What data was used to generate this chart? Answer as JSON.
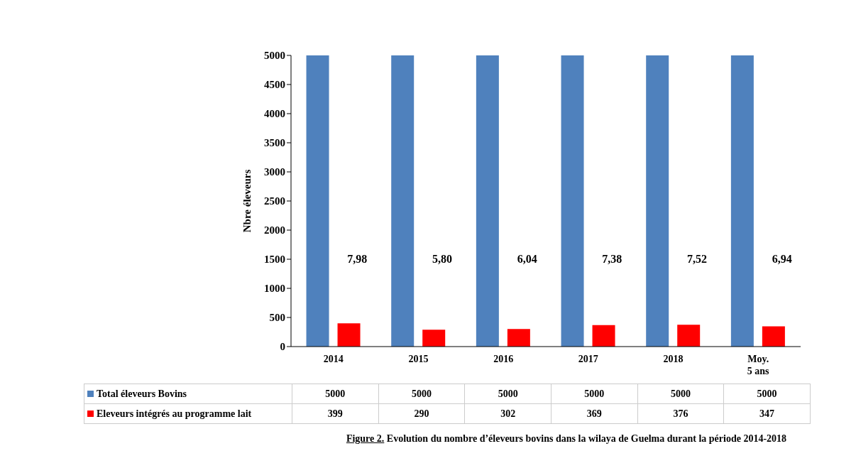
{
  "chart_data": {
    "type": "bar",
    "title": "Figure 2. Evolution du nombre d’éleveurs bovins dans la wilaya de Guelma durant la période 2014-2018",
    "ylabel": "Nbre éleveurs",
    "categories": [
      "2014",
      "2015",
      "2016",
      "2017",
      "2018",
      "Moy. 5 ans"
    ],
    "series": [
      {
        "name": "Total éleveurs Bovins",
        "color": "#4f81bd",
        "values": [
          5000,
          5000,
          5000,
          5000,
          5000,
          5000
        ]
      },
      {
        "name": "Eleveurs intégrés au programme lait",
        "color": "#ff0000",
        "values": [
          399,
          290,
          302,
          369,
          376,
          347
        ]
      }
    ],
    "ylim": [
      0,
      5000
    ],
    "yticks": [
      0,
      500,
      1000,
      1500,
      2000,
      2500,
      3000,
      3500,
      4000,
      4500,
      5000
    ],
    "grid": false,
    "legend": "bottom left",
    "data_labels": true,
    "annotations": [
      "7,98",
      "5,80",
      "6,04",
      "7,38",
      "7,52",
      "6,94"
    ]
  }
}
